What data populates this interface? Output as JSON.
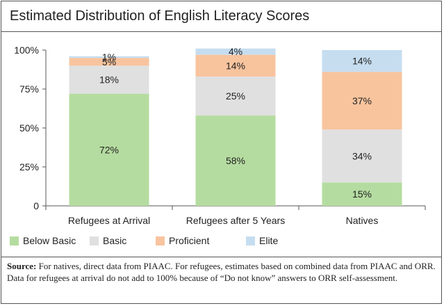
{
  "title": "Estimated Distribution of English Literacy Scores",
  "chart_data": {
    "type": "bar",
    "stacked": true,
    "categories": [
      "Refugees at Arrival",
      "Refugees after 5 Years",
      "Natives"
    ],
    "series": [
      {
        "name": "Below Basic",
        "color": "#b5dca0",
        "values": [
          72,
          58,
          15
        ],
        "labels": [
          "72%",
          "58%",
          "15%"
        ]
      },
      {
        "name": "Basic",
        "color": "#e0e0e0",
        "values": [
          18,
          25,
          34
        ],
        "labels": [
          "18%",
          "25%",
          "34%"
        ]
      },
      {
        "name": "Proficient",
        "color": "#f8c49e",
        "values": [
          5,
          14,
          37
        ],
        "labels": [
          "5%",
          "14%",
          "37%"
        ]
      },
      {
        "name": "Elite",
        "color": "#c6ddf0",
        "values": [
          1,
          4,
          14
        ],
        "labels": [
          "1%",
          "4%",
          "14%"
        ]
      }
    ],
    "yticks": [
      "0",
      "25%",
      "50%",
      "75%",
      "100%"
    ],
    "ylim": [
      0,
      100
    ],
    "grid": false,
    "legend_position": "bottom"
  },
  "source": {
    "label": "Source:",
    "line1": "For natives, direct data from PIAAC. For refugees, estimates based on combined data from PIAAC and ORR.",
    "line2": "Data for refugees at arrival do not add to 100% because of “Do not know” answers to ORR self-assessment."
  }
}
